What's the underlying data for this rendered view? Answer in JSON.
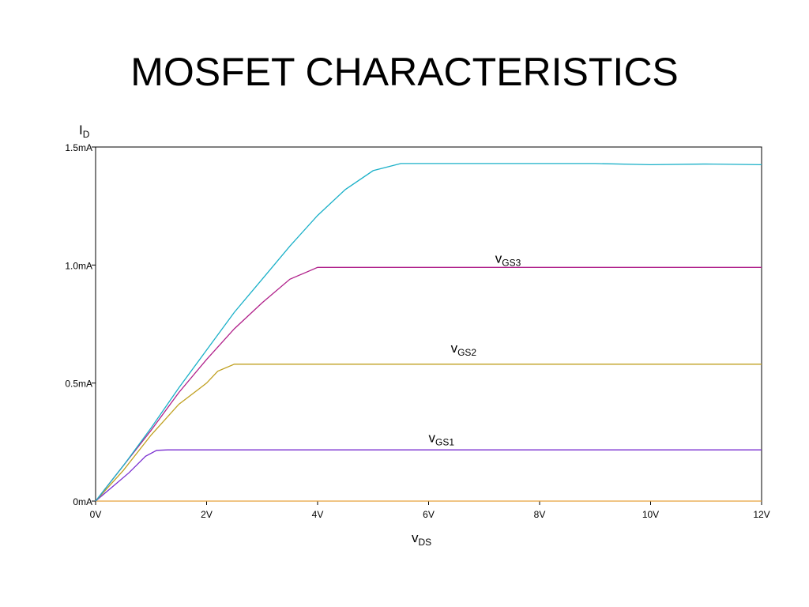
{
  "chart_data": {
    "type": "line",
    "title": "MOSFET CHARACTERISTICS",
    "xlabel": {
      "main": "v",
      "sub": "DS"
    },
    "ylabel": {
      "main": "I",
      "sub": "D"
    },
    "xlim": [
      0,
      12
    ],
    "ylim": [
      0,
      1.5
    ],
    "x_ticks": [
      {
        "value": 0,
        "label": "0V"
      },
      {
        "value": 2,
        "label": "2V"
      },
      {
        "value": 4,
        "label": "4V"
      },
      {
        "value": 6,
        "label": "6V"
      },
      {
        "value": 8,
        "label": "8V"
      },
      {
        "value": 10,
        "label": "10V"
      },
      {
        "value": 12,
        "label": "12V"
      }
    ],
    "y_ticks": [
      {
        "value": 0,
        "label": "0mA"
      },
      {
        "value": 0.5,
        "label": "0.5mA"
      },
      {
        "value": 1.0,
        "label": "1.0mA"
      },
      {
        "value": 1.5,
        "label": "1.5mA"
      }
    ],
    "grid": false,
    "series": [
      {
        "color": "#e6a23c",
        "points": [
          [
            0,
            0
          ],
          [
            12,
            0
          ]
        ]
      },
      {
        "color": "#7a2fd0",
        "points": [
          [
            0,
            0
          ],
          [
            0.3,
            0.06
          ],
          [
            0.6,
            0.12
          ],
          [
            0.9,
            0.19
          ],
          [
            1.1,
            0.215
          ],
          [
            1.3,
            0.217
          ],
          [
            12,
            0.217
          ]
        ]
      },
      {
        "color": "#c0a020",
        "points": [
          [
            0,
            0
          ],
          [
            0.5,
            0.13
          ],
          [
            1,
            0.28
          ],
          [
            1.5,
            0.41
          ],
          [
            2,
            0.5
          ],
          [
            2.2,
            0.55
          ],
          [
            2.5,
            0.58
          ],
          [
            12,
            0.58
          ]
        ]
      },
      {
        "color": "#b0208a",
        "points": [
          [
            0,
            0
          ],
          [
            0.5,
            0.15
          ],
          [
            1,
            0.3
          ],
          [
            1.5,
            0.46
          ],
          [
            2,
            0.6
          ],
          [
            2.5,
            0.73
          ],
          [
            3,
            0.84
          ],
          [
            3.5,
            0.94
          ],
          [
            4,
            0.99
          ],
          [
            12,
            0.99
          ]
        ]
      },
      {
        "color": "#1ab0c8",
        "points": [
          [
            0,
            0
          ],
          [
            0.5,
            0.15
          ],
          [
            1,
            0.31
          ],
          [
            1.5,
            0.48
          ],
          [
            2,
            0.64
          ],
          [
            2.5,
            0.8
          ],
          [
            3,
            0.94
          ],
          [
            3.5,
            1.08
          ],
          [
            4,
            1.21
          ],
          [
            4.5,
            1.32
          ],
          [
            5,
            1.4
          ],
          [
            5.5,
            1.43
          ],
          [
            9,
            1.43
          ],
          [
            10,
            1.425
          ],
          [
            11,
            1.428
          ],
          [
            12,
            1.425
          ]
        ]
      }
    ],
    "annotations": [
      {
        "main": "v",
        "sub": "GS3",
        "x": 7.2,
        "y": 1.01
      },
      {
        "main": "v",
        "sub": "GS2",
        "x": 6.4,
        "y": 0.63
      },
      {
        "main": "v",
        "sub": "GS1",
        "x": 6.0,
        "y": 0.25
      }
    ]
  }
}
